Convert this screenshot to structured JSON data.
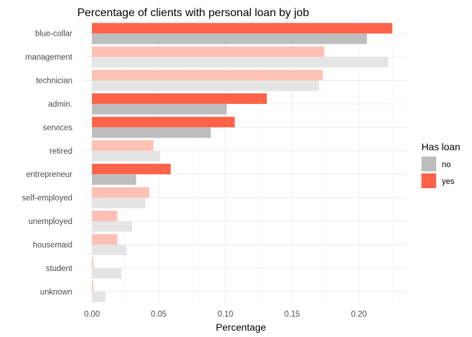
{
  "chart_data": {
    "type": "bar",
    "orientation": "horizontal",
    "title": "Percentage of clients with personal loan by job",
    "xlabel": "Percentage",
    "ylabel": "",
    "xlim": [
      0,
      0.235
    ],
    "xticks": [
      "0.00",
      "0.05",
      "0.10",
      "0.15",
      "0.20"
    ],
    "xtick_values": [
      0,
      0.05,
      0.1,
      0.15,
      0.2
    ],
    "grid": true,
    "legend": {
      "title": "Has loan",
      "placement": "right"
    },
    "categories": [
      "blue-collar",
      "management",
      "technician",
      "admin.",
      "services",
      "retired",
      "entrepreneur",
      "self-employed",
      "unemployed",
      "housemaid",
      "student",
      "unknown"
    ],
    "highlighted": [
      "blue-collar",
      "admin.",
      "services",
      "entrepreneur"
    ],
    "series": [
      {
        "name": "no",
        "color": "#bebebe",
        "faded_color": "#e5e5e5",
        "values": [
          0.206,
          0.222,
          0.17,
          0.101,
          0.089,
          0.051,
          0.033,
          0.04,
          0.03,
          0.026,
          0.022,
          0.01
        ]
      },
      {
        "name": "yes",
        "color": "#ff6347",
        "faded_color": "#ffc0b5",
        "values": [
          0.225,
          0.174,
          0.173,
          0.131,
          0.107,
          0.046,
          0.059,
          0.043,
          0.019,
          0.019,
          0.001,
          0.001
        ]
      }
    ]
  }
}
